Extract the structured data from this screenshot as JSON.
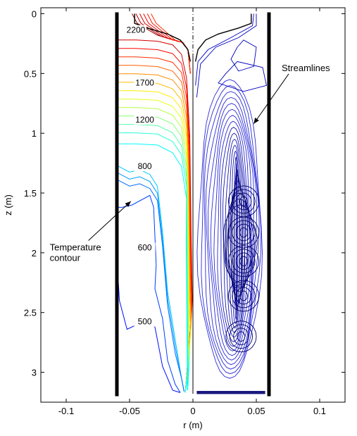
{
  "chart_data": {
    "type": "contour",
    "xlabel": "r (m)",
    "ylabel": "z (m)",
    "xlim": [
      -0.12,
      0.12
    ],
    "ylim": [
      3.25,
      -0.05
    ],
    "y_axis_reversed": true,
    "grid": false,
    "x_ticks": [
      {
        "value": -0.1,
        "label": "-0.1"
      },
      {
        "value": -0.05,
        "label": "-0.05"
      },
      {
        "value": 0,
        "label": "0"
      },
      {
        "value": 0.05,
        "label": "0.05"
      },
      {
        "value": 0.1,
        "label": "0.1"
      }
    ],
    "y_ticks": [
      {
        "value": 0,
        "label": "0"
      },
      {
        "value": 0.5,
        "label": "0.5"
      },
      {
        "value": 1,
        "label": "1"
      },
      {
        "value": 1.5,
        "label": "1.5"
      },
      {
        "value": 2,
        "label": "2"
      },
      {
        "value": 2.5,
        "label": "2.5"
      },
      {
        "value": 3,
        "label": "3"
      }
    ],
    "walls": [
      {
        "r": -0.06,
        "z": [
          0.0,
          3.2
        ]
      },
      {
        "r": 0.06,
        "z": [
          0.0,
          3.2
        ]
      }
    ],
    "centerline": {
      "r": 0
    },
    "temperature_contour_labels": [
      {
        "text": "2200",
        "r": -0.045,
        "z": 0.16
      },
      {
        "text": "1700",
        "r": -0.038,
        "z": 0.6
      },
      {
        "text": "1200",
        "r": -0.038,
        "z": 0.91
      },
      {
        "text": "800",
        "r": -0.038,
        "z": 1.3
      },
      {
        "text": "600",
        "r": -0.038,
        "z": 1.98
      },
      {
        "text": "500",
        "r": -0.038,
        "z": 2.6
      }
    ],
    "temperature_levels": [
      2200,
      2100,
      2000,
      1900,
      1800,
      1700,
      1600,
      1500,
      1400,
      1300,
      1200,
      1100,
      1000,
      900,
      800,
      700,
      600,
      500
    ],
    "annotations": [
      {
        "lines": [
          "Streamlines"
        ],
        "text_r": 0.07,
        "text_z": 0.48,
        "arrow_to_r": 0.048,
        "arrow_to_z": 0.92
      },
      {
        "lines": [
          "Temperature",
          "contour"
        ],
        "text_r": -0.113,
        "text_z": 1.98,
        "arrow_to_r": -0.049,
        "arrow_to_z": 1.57
      }
    ]
  }
}
